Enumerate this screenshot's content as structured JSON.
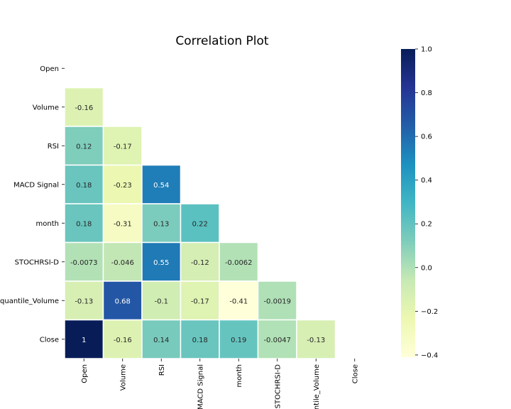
{
  "chart_data": {
    "type": "heatmap",
    "title": "Correlation Plot",
    "variables": [
      "Open",
      "Volume",
      "RSI",
      "MACD Signal",
      "month",
      "STOCHRSI-D",
      "quantile_Volume",
      "Close"
    ],
    "mask": "upper triangle incl. diagonal",
    "matrix_lower": [
      [],
      [
        -0.16
      ],
      [
        0.12,
        -0.17
      ],
      [
        0.18,
        -0.23,
        0.54
      ],
      [
        0.18,
        -0.31,
        0.13,
        0.22
      ],
      [
        -0.0073,
        -0.046,
        0.55,
        -0.12,
        -0.0062
      ],
      [
        -0.13,
        0.68,
        -0.1,
        -0.17,
        -0.41,
        -0.0019
      ],
      [
        1,
        -0.16,
        0.14,
        0.18,
        0.19,
        -0.0047,
        -0.13
      ]
    ],
    "labels_lower": [
      [],
      [
        "-0.16"
      ],
      [
        "0.12",
        "-0.17"
      ],
      [
        "0.18",
        "-0.23",
        "0.54"
      ],
      [
        "0.18",
        "-0.31",
        "0.13",
        "0.22"
      ],
      [
        "-0.0073",
        "-0.046",
        "0.55",
        "-0.12",
        "-0.0062"
      ],
      [
        "-0.13",
        "0.68",
        "-0.1",
        "-0.17",
        "-0.41",
        "-0.0019"
      ],
      [
        "1",
        "-0.16",
        "0.14",
        "0.18",
        "0.19",
        "-0.0047",
        "-0.13"
      ]
    ],
    "colormap": "YlGnBu",
    "vmin": -0.41,
    "vmax": 1.0,
    "colorbar_ticks": [
      1.0,
      0.8,
      0.6,
      0.4,
      0.2,
      0.0,
      -0.2,
      -0.4
    ],
    "colorbar_tick_labels": [
      "1.0",
      "0.8",
      "0.6",
      "0.4",
      "0.2",
      "0.0",
      "−0.2",
      "−0.4"
    ],
    "grid": false,
    "legend": "colorbar-right"
  }
}
